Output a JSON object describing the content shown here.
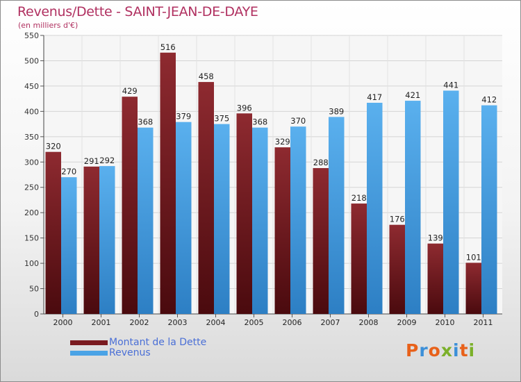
{
  "title": "Revenus/Dette - SAINT-JEAN-DE-DAYE",
  "subtitle": "(en milliers d'€)",
  "colors": {
    "dette": "#7a1a1f",
    "revenus": "#4aa3e6",
    "title": "#b03060",
    "legend_text": "#4a6fd6"
  },
  "legend": [
    {
      "label": "Montant de la Dette",
      "color": "#7a1a1f"
    },
    {
      "label": "Revenus",
      "color": "#4aa3e6"
    }
  ],
  "logo": {
    "text": "Proxiti",
    "letters": [
      "P",
      "r",
      "o",
      "x",
      "i",
      "t",
      "i"
    ],
    "colors": [
      "#e8611a",
      "#3b8fd8",
      "#e8611a",
      "#7bb02a",
      "#3b8fd8",
      "#e8611a",
      "#7bb02a"
    ]
  },
  "chart_data": {
    "type": "bar",
    "categories": [
      "2000",
      "2001",
      "2002",
      "2003",
      "2004",
      "2005",
      "2006",
      "2007",
      "2008",
      "2009",
      "2010",
      "2011"
    ],
    "series": [
      {
        "name": "Montant de la Dette",
        "values": [
          320,
          291,
          429,
          516,
          458,
          396,
          329,
          288,
          218,
          176,
          139,
          101
        ]
      },
      {
        "name": "Revenus",
        "values": [
          270,
          292,
          368,
          379,
          375,
          368,
          370,
          389,
          417,
          421,
          441,
          412
        ]
      }
    ],
    "ylim": [
      0,
      550
    ],
    "yticks": [
      0,
      50,
      100,
      150,
      200,
      250,
      300,
      350,
      400,
      450,
      500,
      550
    ],
    "grid": true,
    "legend_position": "bottom-left"
  }
}
